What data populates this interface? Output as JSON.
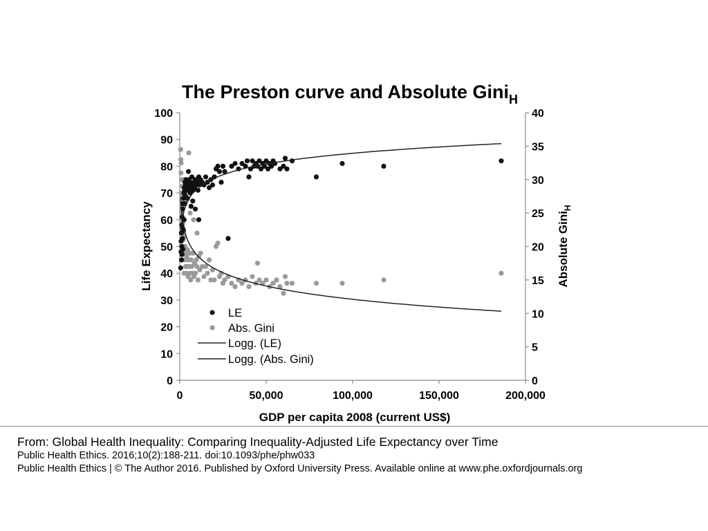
{
  "chart_data": {
    "type": "scatter",
    "title": "The Preston curve and Absolute Gini",
    "title_subscript": "H",
    "xlabel": "GDP per capita 2008  (current US$)",
    "ylabel": "Life Expectancy",
    "y2label": "Absolute Gini",
    "y2label_subscript": "H",
    "xlim": [
      0,
      200000
    ],
    "ylim": [
      0,
      100
    ],
    "y2lim": [
      0,
      40
    ],
    "xticks": [
      0,
      50000,
      100000,
      150000,
      200000
    ],
    "xtick_labels": [
      "0",
      "50,000",
      "100,000",
      "150,000",
      "200,000"
    ],
    "yticks": [
      0,
      10,
      20,
      30,
      40,
      50,
      60,
      70,
      80,
      90,
      100
    ],
    "ytick_labels": [
      "0",
      "10",
      "20",
      "30",
      "40",
      "50",
      "60",
      "70",
      "80",
      "90",
      "100"
    ],
    "y2ticks": [
      0,
      5,
      10,
      15,
      20,
      25,
      30,
      35,
      40
    ],
    "y2tick_labels": [
      "0",
      "5",
      "10",
      "15",
      "20",
      "25",
      "30",
      "35",
      "40"
    ],
    "legend": [
      "LE",
      "Abs. Gini",
      "Logg. (LE)",
      "Logg. (Abs. Gini)"
    ],
    "legend_position": "bottom-left",
    "colors": {
      "le": "#111111",
      "gini": "#9a9a9a",
      "trend": "#222222"
    },
    "series": [
      {
        "name": "LE",
        "axis": "left",
        "points": [
          [
            500,
            42
          ],
          [
            700,
            48
          ],
          [
            800,
            52
          ],
          [
            900,
            55
          ],
          [
            1000,
            45
          ],
          [
            1100,
            58
          ],
          [
            1200,
            50
          ],
          [
            1300,
            47
          ],
          [
            1400,
            61
          ],
          [
            1500,
            53
          ],
          [
            1600,
            57
          ],
          [
            1700,
            64
          ],
          [
            1800,
            49
          ],
          [
            2000,
            66
          ],
          [
            2100,
            56
          ],
          [
            2200,
            68
          ],
          [
            2400,
            70
          ],
          [
            2500,
            60
          ],
          [
            2600,
            72
          ],
          [
            2800,
            71
          ],
          [
            3000,
            74
          ],
          [
            3200,
            69
          ],
          [
            3400,
            73
          ],
          [
            3600,
            75
          ],
          [
            3800,
            72
          ],
          [
            4000,
            71
          ],
          [
            4200,
            74
          ],
          [
            4500,
            68
          ],
          [
            4800,
            73
          ],
          [
            5000,
            72
          ],
          [
            5200,
            75
          ],
          [
            5500,
            71
          ],
          [
            5800,
            73
          ],
          [
            6000,
            70
          ],
          [
            6300,
            74
          ],
          [
            6600,
            72
          ],
          [
            7000,
            76
          ],
          [
            7400,
            73
          ],
          [
            7800,
            71
          ],
          [
            8200,
            74
          ],
          [
            8600,
            72
          ],
          [
            9000,
            75
          ],
          [
            9500,
            73
          ],
          [
            10000,
            74
          ],
          [
            10500,
            71
          ],
          [
            11000,
            76
          ],
          [
            11500,
            73
          ],
          [
            12000,
            75
          ],
          [
            13000,
            74
          ],
          [
            14000,
            73
          ],
          [
            15000,
            76
          ],
          [
            16000,
            74
          ],
          [
            17000,
            72
          ],
          [
            18000,
            75
          ],
          [
            19000,
            73
          ],
          [
            20000,
            76
          ],
          [
            21000,
            79
          ],
          [
            22000,
            80
          ],
          [
            23000,
            78
          ],
          [
            24000,
            74
          ],
          [
            25000,
            80
          ],
          [
            26000,
            78
          ],
          [
            28000,
            53
          ],
          [
            30000,
            80
          ],
          [
            32000,
            81
          ],
          [
            34000,
            79
          ],
          [
            36000,
            81
          ],
          [
            38000,
            80
          ],
          [
            39000,
            82
          ],
          [
            40000,
            76
          ],
          [
            41000,
            79
          ],
          [
            42000,
            82
          ],
          [
            43000,
            80
          ],
          [
            44000,
            81
          ],
          [
            45000,
            80
          ],
          [
            46000,
            82
          ],
          [
            47000,
            79
          ],
          [
            48000,
            81
          ],
          [
            49000,
            80
          ],
          [
            50000,
            82
          ],
          [
            51000,
            79
          ],
          [
            52000,
            81
          ],
          [
            53000,
            80
          ],
          [
            54000,
            82
          ],
          [
            55000,
            81
          ],
          [
            58000,
            79
          ],
          [
            60000,
            80
          ],
          [
            61000,
            83
          ],
          [
            62000,
            79
          ],
          [
            65000,
            82
          ],
          [
            79000,
            76
          ],
          [
            94000,
            81
          ],
          [
            118000,
            80
          ],
          [
            186000,
            82
          ],
          [
            3000,
            66
          ],
          [
            5000,
            78
          ],
          [
            7500,
            67
          ],
          [
            9000,
            64
          ],
          [
            11000,
            60
          ],
          [
            6500,
            65
          ]
        ],
        "trend": "logarithmic"
      },
      {
        "name": "Abs. Gini",
        "axis": "right",
        "points": [
          [
            500,
            34.5
          ],
          [
            600,
            33
          ],
          [
            700,
            31
          ],
          [
            800,
            32.5
          ],
          [
            900,
            28
          ],
          [
            1000,
            30
          ],
          [
            1100,
            26
          ],
          [
            1200,
            27.5
          ],
          [
            1300,
            25
          ],
          [
            1400,
            29
          ],
          [
            1500,
            24
          ],
          [
            1600,
            26.5
          ],
          [
            1700,
            22
          ],
          [
            1800,
            23.5
          ],
          [
            2000,
            21
          ],
          [
            2200,
            22.5
          ],
          [
            2400,
            20
          ],
          [
            2600,
            19
          ],
          [
            2800,
            21.5
          ],
          [
            3000,
            18
          ],
          [
            3200,
            20
          ],
          [
            3400,
            17
          ],
          [
            3600,
            19
          ],
          [
            3800,
            16
          ],
          [
            4000,
            18.5
          ],
          [
            4200,
            17
          ],
          [
            4500,
            19.5
          ],
          [
            4800,
            15.5
          ],
          [
            5000,
            18
          ],
          [
            5200,
            34
          ],
          [
            5500,
            17
          ],
          [
            5800,
            16
          ],
          [
            6000,
            19
          ],
          [
            6300,
            15
          ],
          [
            6600,
            18
          ],
          [
            7000,
            17
          ],
          [
            7400,
            16
          ],
          [
            7800,
            19
          ],
          [
            8200,
            15.5
          ],
          [
            8600,
            17.5
          ],
          [
            9000,
            16
          ],
          [
            9500,
            18
          ],
          [
            10000,
            17
          ],
          [
            10500,
            15
          ],
          [
            11000,
            18.5
          ],
          [
            11500,
            16.5
          ],
          [
            12000,
            19
          ],
          [
            13000,
            17
          ],
          [
            14000,
            15.5
          ],
          [
            15000,
            17
          ],
          [
            16000,
            16
          ],
          [
            17000,
            18
          ],
          [
            18000,
            15
          ],
          [
            19000,
            16.5
          ],
          [
            20000,
            15
          ],
          [
            21000,
            20
          ],
          [
            22000,
            20.5
          ],
          [
            23000,
            15.5
          ],
          [
            24000,
            16
          ],
          [
            25000,
            14.5
          ],
          [
            26000,
            15
          ],
          [
            28000,
            15.5
          ],
          [
            30000,
            14.5
          ],
          [
            32000,
            14
          ],
          [
            34000,
            15
          ],
          [
            36000,
            14.5
          ],
          [
            38000,
            15
          ],
          [
            40000,
            14
          ],
          [
            42000,
            15.5
          ],
          [
            44000,
            14.5
          ],
          [
            45000,
            17.5
          ],
          [
            46000,
            15
          ],
          [
            48000,
            14.5
          ],
          [
            50000,
            15
          ],
          [
            52000,
            14
          ],
          [
            54000,
            14.5
          ],
          [
            56000,
            15
          ],
          [
            58000,
            14
          ],
          [
            60000,
            13
          ],
          [
            61000,
            15.5
          ],
          [
            62000,
            14.5
          ],
          [
            65000,
            14.5
          ],
          [
            79000,
            14.5
          ],
          [
            94000,
            14.5
          ],
          [
            118000,
            15
          ],
          [
            186000,
            16
          ],
          [
            2000,
            30
          ],
          [
            3000,
            28
          ],
          [
            4000,
            27
          ],
          [
            6000,
            25
          ],
          [
            8000,
            24
          ],
          [
            10000,
            22
          ],
          [
            1000,
            20
          ],
          [
            1500,
            18
          ],
          [
            2500,
            16
          ]
        ],
        "trend": "logarithmic"
      }
    ]
  },
  "footer": {
    "from": "From: Global Health Inequality: Comparing Inequality-Adjusted Life Expectancy over Time",
    "citation": "Public Health Ethics. 2016;10(2):188-211. doi:10.1093/phe/phw033",
    "copyright": "Public Health Ethics | © The Author 2016. Published by Oxford University Press. Available online at www.phe.oxfordjournals.org"
  }
}
